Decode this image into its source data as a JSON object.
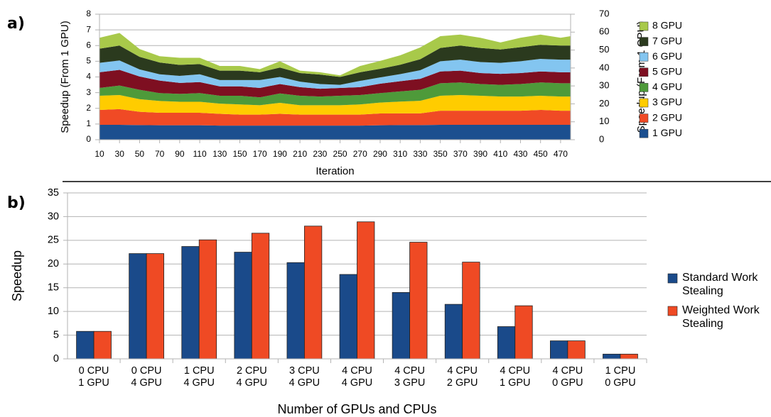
{
  "chart_data": [
    {
      "type": "area",
      "panel": "a)",
      "stacked": true,
      "ylabel": "Speedup (From 1 GPU)",
      "y2label": "Speedup (From 1 CPU)",
      "xlabel": "Iteration",
      "x": [
        10,
        30,
        50,
        70,
        90,
        110,
        130,
        150,
        170,
        190,
        210,
        230,
        250,
        270,
        290,
        310,
        330,
        350,
        370,
        390,
        410,
        430,
        450,
        470,
        480
      ],
      "xlim": [
        10,
        480
      ],
      "xticks": [
        10,
        30,
        50,
        70,
        90,
        110,
        130,
        150,
        170,
        190,
        210,
        230,
        250,
        270,
        290,
        310,
        330,
        350,
        370,
        390,
        410,
        430,
        450,
        470
      ],
      "ylim": [
        0,
        8
      ],
      "yticks": [
        0,
        1,
        2,
        3,
        4,
        5,
        6,
        7,
        8
      ],
      "y2lim": [
        0,
        70
      ],
      "y2ticks": [
        0,
        10,
        20,
        30,
        40,
        50,
        60,
        70
      ],
      "grid": true,
      "legend": "right",
      "series": [
        {
          "name": "1 GPU",
          "color": "#1c4f8f",
          "values": [
            0.95,
            0.95,
            0.93,
            0.92,
            0.92,
            0.92,
            0.9,
            0.9,
            0.9,
            0.9,
            0.9,
            0.9,
            0.9,
            0.9,
            0.92,
            0.93,
            0.93,
            0.95,
            0.95,
            0.95,
            0.95,
            0.95,
            0.95,
            0.95,
            0.95
          ]
        },
        {
          "name": "2 GPU",
          "color": "#f04a25",
          "values": [
            0.95,
            1.0,
            0.85,
            0.8,
            0.8,
            0.8,
            0.75,
            0.7,
            0.7,
            0.75,
            0.7,
            0.7,
            0.7,
            0.7,
            0.75,
            0.75,
            0.75,
            0.9,
            0.9,
            0.9,
            0.9,
            0.9,
            0.95,
            0.9,
            0.9
          ]
        },
        {
          "name": "3 GPU",
          "color": "#ffcc00",
          "values": [
            0.9,
            0.9,
            0.8,
            0.75,
            0.7,
            0.7,
            0.65,
            0.65,
            0.6,
            0.7,
            0.6,
            0.6,
            0.6,
            0.65,
            0.7,
            0.75,
            0.8,
            0.95,
            1.0,
            0.95,
            0.9,
            0.9,
            0.9,
            0.9,
            0.9
          ]
        },
        {
          "name": "4 GPU",
          "color": "#4e9a3a",
          "values": [
            0.5,
            0.6,
            0.6,
            0.5,
            0.5,
            0.55,
            0.5,
            0.55,
            0.5,
            0.6,
            0.6,
            0.55,
            0.6,
            0.6,
            0.6,
            0.65,
            0.7,
            0.8,
            0.8,
            0.75,
            0.75,
            0.8,
            0.85,
            0.85,
            0.85
          ]
        },
        {
          "name": "5 GPU",
          "color": "#7e0f21",
          "values": [
            1.0,
            1.0,
            0.85,
            0.8,
            0.7,
            0.7,
            0.6,
            0.6,
            0.6,
            0.6,
            0.55,
            0.5,
            0.5,
            0.5,
            0.6,
            0.65,
            0.7,
            0.75,
            0.75,
            0.7,
            0.7,
            0.7,
            0.7,
            0.7,
            0.7
          ]
        },
        {
          "name": "6 GPU",
          "color": "#83c5f0",
          "values": [
            0.6,
            0.6,
            0.45,
            0.4,
            0.45,
            0.5,
            0.4,
            0.4,
            0.5,
            0.45,
            0.35,
            0.3,
            0.2,
            0.4,
            0.4,
            0.45,
            0.55,
            0.65,
            0.7,
            0.7,
            0.7,
            0.75,
            0.8,
            0.8,
            0.8
          ]
        },
        {
          "name": "7 GPU",
          "color": "#2b3a1e",
          "values": [
            0.9,
            0.95,
            0.8,
            0.75,
            0.7,
            0.65,
            0.6,
            0.6,
            0.5,
            0.6,
            0.55,
            0.6,
            0.5,
            0.55,
            0.55,
            0.6,
            0.7,
            0.85,
            0.9,
            0.9,
            0.85,
            0.9,
            0.9,
            0.9,
            0.9
          ]
        },
        {
          "name": "8 GPU",
          "color": "#a8c94a",
          "values": [
            0.7,
            0.8,
            0.5,
            0.4,
            0.45,
            0.4,
            0.3,
            0.3,
            0.2,
            0.4,
            0.15,
            0.15,
            0.1,
            0.4,
            0.5,
            0.6,
            0.75,
            0.75,
            0.7,
            0.65,
            0.45,
            0.6,
            0.65,
            0.5,
            0.6
          ]
        }
      ]
    },
    {
      "type": "bar",
      "panel": "b)",
      "ylabel": "Speedup",
      "xlabel": "Number of GPUs and CPUs",
      "categories": [
        [
          "0 CPU",
          "1 GPU"
        ],
        [
          "0 CPU",
          "4 GPU"
        ],
        [
          "1 CPU",
          "4 GPU"
        ],
        [
          "2 CPU",
          "4 GPU"
        ],
        [
          "3 CPU",
          "4 GPU"
        ],
        [
          "4 CPU",
          "4 GPU"
        ],
        [
          "4 CPU",
          "3 GPU"
        ],
        [
          "4 CPU",
          "2 GPU"
        ],
        [
          "4 CPU",
          "1 GPU"
        ],
        [
          "4 CPU",
          "0 GPU"
        ],
        [
          "1 CPU",
          "0 GPU"
        ]
      ],
      "ylim": [
        0,
        35
      ],
      "yticks": [
        0,
        5,
        10,
        15,
        20,
        25,
        30,
        35
      ],
      "grid": true,
      "legend": "right",
      "series": [
        {
          "name": "Standard Work Stealing",
          "color": "#1a4a8a",
          "values": [
            5.8,
            22.2,
            23.7,
            22.5,
            20.3,
            17.8,
            14.0,
            11.5,
            6.8,
            3.8,
            1.0
          ]
        },
        {
          "name": "Weighted Work Stealing",
          "color": "#ef4a24",
          "values": [
            5.8,
            22.2,
            25.1,
            26.5,
            28.0,
            28.9,
            24.6,
            20.4,
            11.2,
            3.8,
            1.0
          ]
        }
      ]
    }
  ]
}
